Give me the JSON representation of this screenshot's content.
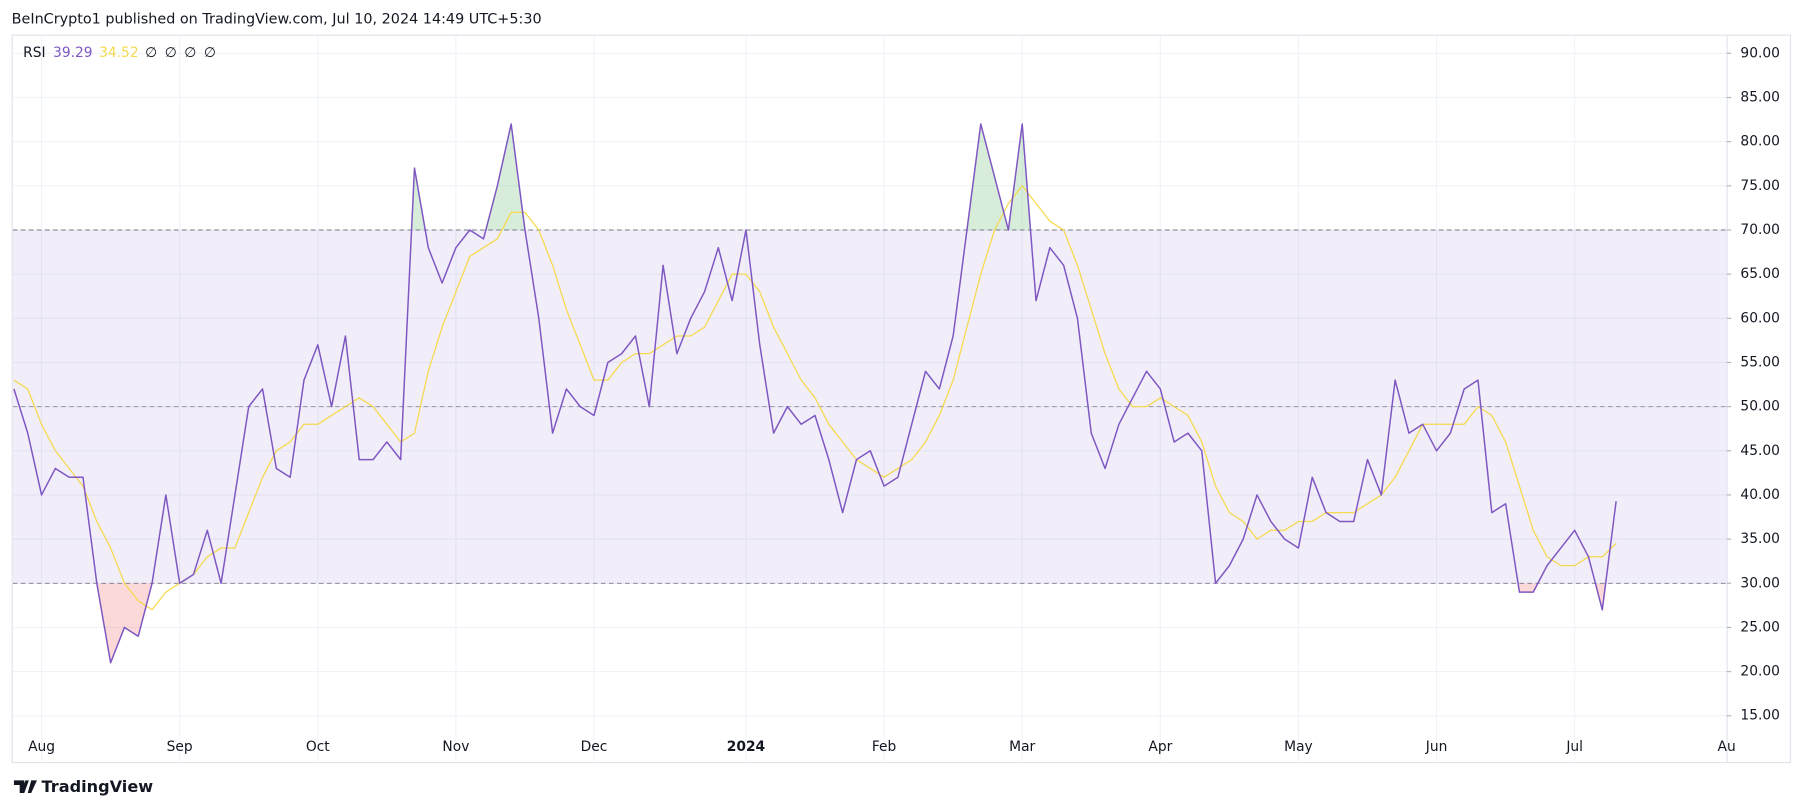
{
  "header": {
    "text": "BeInCrypto1 published on TradingView.com, Jul 10, 2024 14:49 UTC+5:30"
  },
  "footer": {
    "brand": "TradingView"
  },
  "chart_data": {
    "type": "line",
    "legend_values_extra": [
      "∅",
      "∅",
      "∅",
      "∅"
    ],
    "categories": [
      null,
      null,
      "Aug",
      null,
      null,
      null,
      null,
      null,
      null,
      null,
      null,
      null,
      "Sep",
      null,
      null,
      null,
      null,
      null,
      null,
      null,
      null,
      null,
      "Oct",
      null,
      null,
      null,
      null,
      null,
      null,
      null,
      null,
      null,
      "Nov",
      null,
      null,
      null,
      null,
      null,
      null,
      null,
      null,
      null,
      "Dec",
      null,
      null,
      null,
      null,
      null,
      null,
      null,
      null,
      null,
      null,
      "2024",
      null,
      null,
      null,
      null,
      null,
      null,
      null,
      null,
      null,
      "Feb",
      null,
      null,
      null,
      null,
      null,
      null,
      null,
      null,
      null,
      "Mar",
      null,
      null,
      null,
      null,
      null,
      null,
      null,
      null,
      null,
      "Apr",
      null,
      null,
      null,
      null,
      null,
      null,
      null,
      null,
      null,
      "May",
      null,
      null,
      null,
      null,
      null,
      null,
      null,
      null,
      null,
      "Jun",
      null,
      null,
      null,
      null,
      null,
      null,
      null,
      null,
      null,
      "Jul",
      null,
      null,
      null,
      null,
      null,
      null,
      null,
      null,
      null,
      null,
      "Au"
    ],
    "series": [
      {
        "name": "RSI",
        "color": "#7e57c2",
        "values": [
          52,
          47,
          40,
          43,
          42,
          42,
          30,
          21,
          25,
          24,
          30,
          40,
          30,
          31,
          36,
          30,
          40,
          50,
          52,
          43,
          42,
          53,
          57,
          50,
          58,
          44,
          44,
          46,
          44,
          77,
          68,
          64,
          68,
          70,
          69,
          75,
          82,
          70,
          60,
          47,
          52,
          50,
          49,
          55,
          56,
          58,
          50,
          66,
          56,
          60,
          63,
          68,
          62,
          70,
          57,
          47,
          50,
          48,
          49,
          44,
          38,
          44,
          45,
          41,
          42,
          48,
          54,
          52,
          58,
          70,
          82,
          76,
          70,
          82,
          62,
          68,
          66,
          60,
          47,
          43,
          48,
          51,
          54,
          52,
          46,
          47,
          45,
          30,
          32,
          35,
          40,
          37,
          35,
          34,
          42,
          38,
          37,
          37,
          44,
          40,
          53,
          47,
          48,
          45,
          47,
          52,
          53,
          38,
          39,
          29,
          29,
          32,
          34,
          36,
          33,
          27,
          39.29,
          null,
          null,
          null,
          null,
          null,
          null,
          null,
          null
        ]
      },
      {
        "color": "#f5d94e",
        "values": [
          53,
          52,
          48,
          45,
          43,
          41,
          37,
          34,
          30,
          28,
          27,
          29,
          30,
          31,
          33,
          34,
          34,
          38,
          42,
          45,
          46,
          48,
          48,
          49,
          50,
          51,
          50,
          48,
          46,
          47,
          54,
          59,
          63,
          67,
          68,
          69,
          72,
          72,
          70,
          66,
          61,
          57,
          53,
          53,
          55,
          56,
          56,
          57,
          58,
          58,
          59,
          62,
          65,
          65,
          63,
          59,
          56,
          53,
          51,
          48,
          46,
          44,
          43,
          42,
          43,
          44,
          46,
          49,
          53,
          59,
          65,
          70,
          73,
          75,
          73,
          71,
          70,
          66,
          61,
          56,
          52,
          50,
          50,
          51,
          50,
          49,
          46,
          41,
          38,
          37,
          35,
          36,
          36,
          37,
          37,
          38,
          38,
          38,
          39,
          40,
          42,
          45,
          48,
          48,
          48,
          48,
          50,
          49,
          46,
          41,
          36,
          33,
          32,
          32,
          33,
          33,
          34.52,
          null,
          null,
          null,
          null,
          null,
          null,
          null,
          null
        ]
      }
    ],
    "bands": {
      "upper": 70,
      "middle": 50,
      "lower": 30
    },
    "band_fill": "rgba(126,87,194,0.1)",
    "overbought_fill": "rgba(76,175,80,0.22)",
    "oversold_fill": "rgba(239,83,80,0.22)",
    "ylim": [
      9.9,
      92
    ],
    "yticks": [
      {
        "value": 15,
        "label": "15.00"
      },
      {
        "value": 20,
        "label": "20.00"
      },
      {
        "value": 25,
        "label": "25.00"
      },
      {
        "value": 30,
        "label": "30.00"
      },
      {
        "value": 35,
        "label": "35.00"
      },
      {
        "value": 40,
        "label": "40.00"
      },
      {
        "value": 45,
        "label": "45.00"
      },
      {
        "value": 50,
        "label": "50.00"
      },
      {
        "value": 55,
        "label": "55.00"
      },
      {
        "value": 60,
        "label": "60.00"
      },
      {
        "value": 65,
        "label": "65.00"
      },
      {
        "value": 70,
        "label": "70.00"
      },
      {
        "value": 75,
        "label": "75.00"
      },
      {
        "value": 80,
        "label": "80.00"
      },
      {
        "value": 85,
        "label": "85.00"
      },
      {
        "value": 90,
        "label": "90.00"
      }
    ],
    "grid": true
  }
}
